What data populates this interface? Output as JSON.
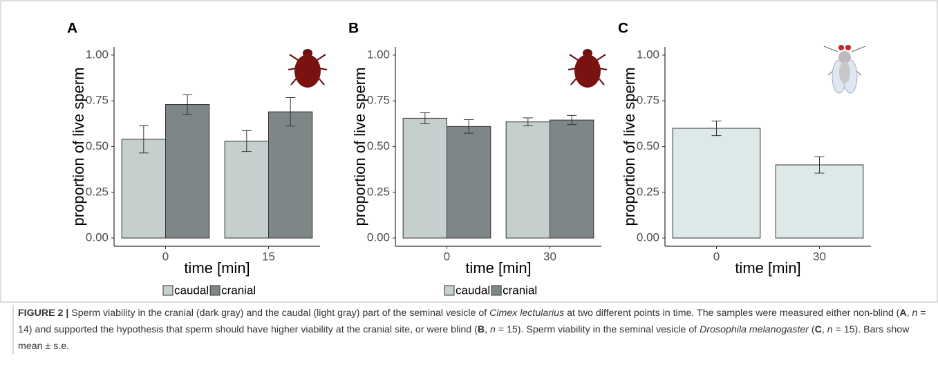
{
  "chart_data": [
    {
      "type": "bar",
      "panel_label": "A",
      "y_label": "proportion of live sperm",
      "x_label": "time [min]",
      "categories": [
        "0",
        "15"
      ],
      "legend": "bottom",
      "series": [
        {
          "name": "caudal",
          "color": "#c5cfcd",
          "values": [
            0.54,
            0.53
          ],
          "errors": [
            0.075,
            0.057
          ]
        },
        {
          "name": "cranial",
          "color": "#7f8687",
          "values": [
            0.73,
            0.69
          ],
          "errors": [
            0.053,
            0.078
          ]
        }
      ],
      "ylim": [
        -0.045,
        1.045
      ],
      "yticks": [
        {
          "value": 0,
          "label": "0.00"
        },
        0.25,
        {
          "value": 0.5,
          "label": "0.50"
        },
        0.75,
        {
          "value": 1,
          "label": "1.00"
        }
      ]
    },
    {
      "type": "bar",
      "panel_label": "B",
      "y_label": "proportion of live sperm",
      "x_label": "time [min]",
      "categories": [
        "0",
        "30"
      ],
      "legend": "bottom",
      "series": [
        {
          "name": "caudal",
          "color": "#c5cfcd",
          "values": [
            0.655,
            0.635
          ],
          "errors": [
            0.03,
            0.022
          ]
        },
        {
          "name": "cranial",
          "color": "#7f8687",
          "values": [
            0.61,
            0.645
          ],
          "errors": [
            0.037,
            0.025
          ]
        }
      ],
      "ylim": [
        -0.045,
        1.045
      ],
      "yticks": [
        {
          "value": 0,
          "label": "0.00"
        },
        0.25,
        {
          "value": 0.5,
          "label": "0.50"
        },
        0.75,
        {
          "value": 1,
          "label": "1.00"
        }
      ]
    },
    {
      "type": "bar",
      "panel_label": "C",
      "y_label": "proportion of live sperm",
      "x_label": "time [min]",
      "categories": [
        "0",
        "30"
      ],
      "series": [
        {
          "color": "#dde9e8",
          "values": [
            0.6,
            0.4
          ],
          "errors": [
            0.04,
            0.045
          ]
        }
      ],
      "ylim": [
        -0.045,
        1.045
      ],
      "yticks": [
        {
          "value": 0,
          "label": "0.00"
        },
        0.25,
        {
          "value": 0.5,
          "label": "0.50"
        },
        0.75,
        {
          "value": 1,
          "label": "1.00"
        }
      ]
    }
  ],
  "caption": [
    "FIGURE 2 |",
    " Sperm viability in the cranial (dark gray) and the caudal (light gray) part of the seminal vesicle of ",
    "Cimex lectularius",
    " at two different points in time. The samples were measured either non-blind (",
    "A",
    ", ",
    "n",
    " = 14) and supported the hypothesis that sperm should have higher viability at the cranial site, or were blind (",
    "B",
    ", ",
    "n",
    " = 15). Sperm viability in the seminal vesicle of ",
    "Drosophila melanogaster",
    " (",
    "C",
    ", ",
    "n",
    " = 15). Bars show mean ± s.e."
  ]
}
